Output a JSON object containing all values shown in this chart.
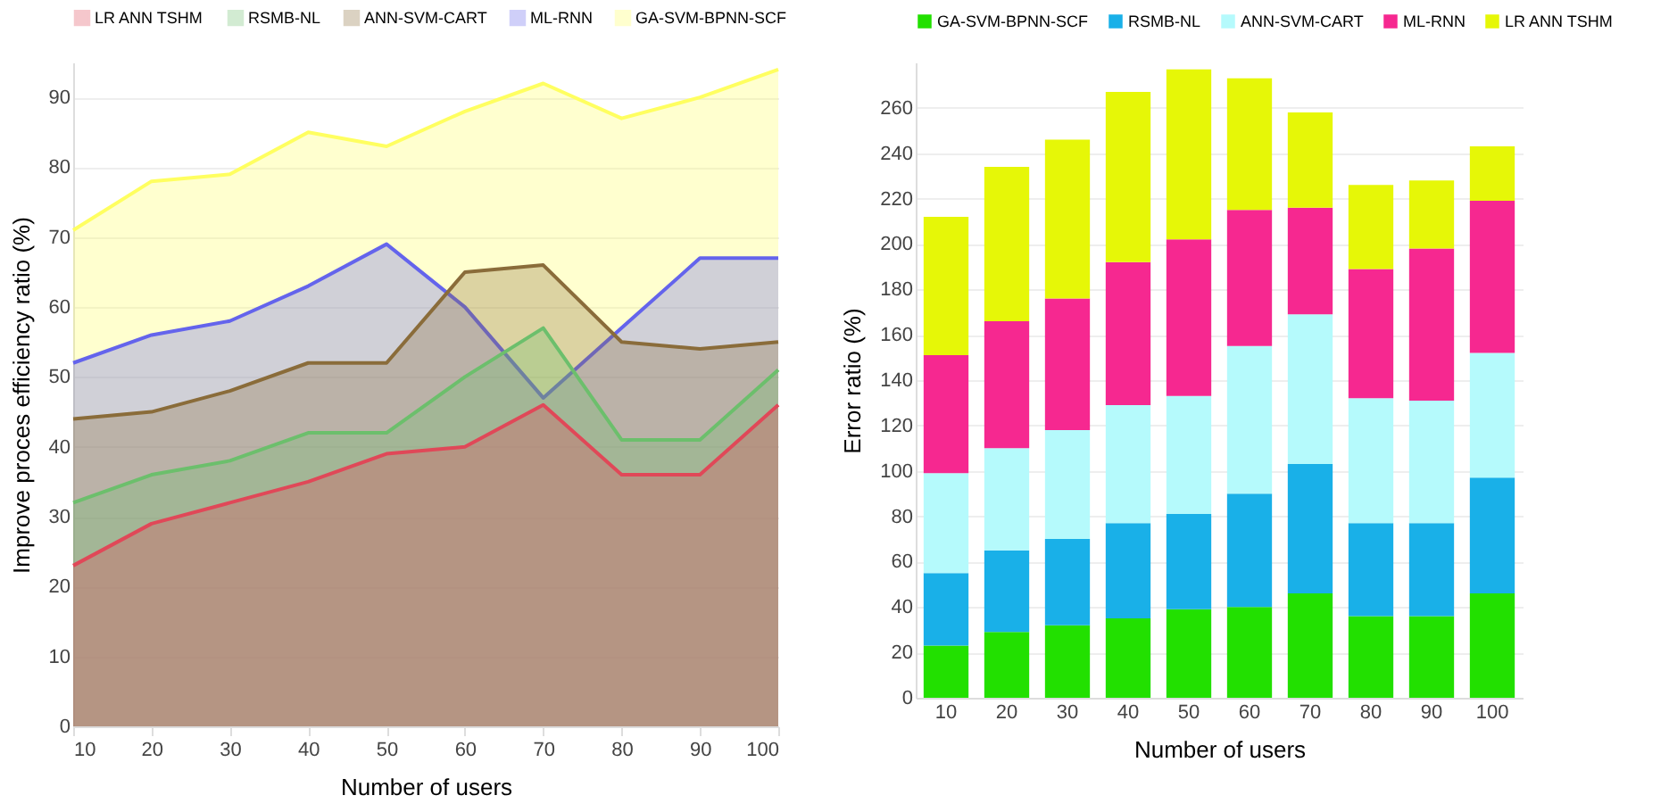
{
  "chart_data": [
    {
      "type": "area",
      "xlabel": "Number of users",
      "ylabel": "Improve proces efficiency ratio (%)",
      "x": [
        10,
        20,
        30,
        40,
        50,
        60,
        70,
        80,
        90,
        100
      ],
      "xlim": [
        10,
        100
      ],
      "xticks": [
        10,
        20,
        30,
        40,
        50,
        60,
        70,
        80,
        90,
        100
      ],
      "ylim": [
        0,
        95
      ],
      "yticks": [
        0,
        10,
        20,
        30,
        40,
        50,
        60,
        70,
        80,
        90
      ],
      "grid": "y",
      "legend": "top",
      "series": [
        {
          "name": "LR ANN TSHM",
          "color": "#e04858",
          "values": [
            23,
            29,
            32,
            35,
            39,
            40,
            46,
            36,
            36,
            46
          ]
        },
        {
          "name": "RSMB-NL",
          "color": "#6cbf6c",
          "values": [
            32,
            36,
            38,
            42,
            42,
            50,
            57,
            41,
            41,
            51
          ]
        },
        {
          "name": "ANN-SVM-CART",
          "color": "#8a6c3a",
          "values": [
            44,
            45,
            48,
            52,
            52,
            65,
            66,
            55,
            54,
            55
          ]
        },
        {
          "name": "ML-RNN",
          "color": "#6464ec",
          "values": [
            52,
            56,
            58,
            63,
            69,
            60,
            47,
            57,
            67,
            67
          ]
        },
        {
          "name": "GA-SVM-BPNN-SCF",
          "color": "#ffff60",
          "values": [
            71,
            78,
            79,
            85,
            83,
            88,
            92,
            87,
            90,
            94
          ]
        }
      ]
    },
    {
      "type": "bar",
      "stacked": true,
      "xlabel": "Number of users",
      "ylabel": "Error ratio (%)",
      "categories": [
        "10",
        "20",
        "30",
        "40",
        "50",
        "60",
        "70",
        "80",
        "90",
        "100"
      ],
      "ylim": [
        0,
        280
      ],
      "yticks": [
        0,
        20,
        40,
        60,
        80,
        100,
        120,
        140,
        160,
        180,
        200,
        220,
        240,
        260
      ],
      "grid": "y",
      "legend": "top",
      "series": [
        {
          "name": "GA-SVM-BPNN-SCF",
          "color": "#22e000",
          "values": [
            23,
            29,
            32,
            35,
            39,
            40,
            46,
            36,
            36,
            46
          ]
        },
        {
          "name": "RSMB-NL",
          "color": "#19b0e8",
          "values": [
            32,
            36,
            38,
            42,
            42,
            50,
            57,
            41,
            41,
            51
          ]
        },
        {
          "name": "ANN-SVM-CART",
          "color": "#b5fafc",
          "values": [
            44,
            45,
            48,
            52,
            52,
            65,
            66,
            55,
            54,
            55
          ]
        },
        {
          "name": "ML-RNN",
          "color": "#f62890",
          "values": [
            52,
            56,
            58,
            63,
            69,
            60,
            47,
            57,
            67,
            67
          ]
        },
        {
          "name": "LR ANN TSHM",
          "color": "#e6f707",
          "values": [
            61,
            68,
            70,
            75,
            75,
            58,
            42,
            37,
            30,
            24
          ]
        }
      ]
    }
  ]
}
